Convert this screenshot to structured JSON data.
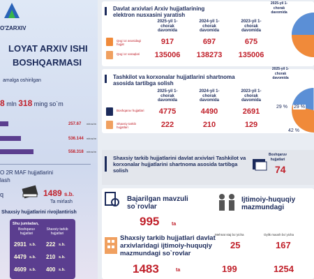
{
  "logo": {
    "name": "O'ZARXIV"
  },
  "header": {
    "title_line1": "LOYAT ARXIV ISHI",
    "title_line2": "BOSHQARMASI"
  },
  "left": {
    "revenue_caption": "amalga oshirilgan",
    "revenue": {
      "mln": "8",
      "mln_unit": "mln",
      "thousand": "318",
      "thousand_unit": "ming so`m"
    },
    "bars": [
      {
        "value": "257.67",
        "unit": "mln so'm"
      },
      {
        "value": "536.144",
        "unit": "mln so'm"
      },
      {
        "value": "558.318",
        "unit": "mln so'm"
      }
    ],
    "maf_title": "O 2R MAF hujjatlarini",
    "maf_subtitle": "lash",
    "restore": {
      "prefix": "q",
      "value": "1489",
      "unit": "s.b.",
      "label": "Ta mirlash"
    },
    "development_title": "Shaxsiy hujjatlarini rivojlantirish",
    "table": {
      "caption": "Shu jumladan,",
      "headers": [
        "Boshqaruv hujjatlari",
        "Shaxsiy tarkib hujjatlari"
      ],
      "rows": [
        [
          "2931",
          "s.b.",
          "222",
          "s.b."
        ],
        [
          "4479",
          "s.b.",
          "210",
          "s.b."
        ],
        [
          "4609",
          "s.b.",
          "400",
          "s.b."
        ]
      ]
    }
  },
  "digitization": {
    "title": "Davlat arxivlari Arxiv hujjatlarining elektron nusxasini yaratish",
    "columns": [
      "2025-yil 1-chorak davomida",
      "2024-yil 1-chorak davomida",
      "2023-yil 1-chorak davomida"
    ],
    "rows": [
      {
        "label": "Qog`oz asosidagi hujjat",
        "values": [
          "917",
          "697",
          "675"
        ]
      },
      {
        "label": "Qog`oz varaqlari",
        "values": [
          "135006",
          "138273",
          "135006"
        ]
      }
    ],
    "pie_caption": "2025-yil 1-chorak davomida"
  },
  "contracts": {
    "title": "Tashkilot va korxonalar hujjatlarini shartnoma asosida tartibga solish",
    "columns": [
      "2025-yil 1-chorak davomida",
      "2024-yil 1-chorak davomida",
      "2023-yil 1-chorak davomida"
    ],
    "rows": [
      {
        "label": "Boshqaruv hujjatlari",
        "values": [
          "4775",
          "4490",
          "2691"
        ]
      },
      {
        "label": "Shaxsiy tarkib hujjatlari",
        "values": [
          "222",
          "210",
          "129"
        ]
      }
    ],
    "pie_caption": "2025-yil 1-chorak davomida",
    "pie_labels": [
      "29 %",
      "29 %",
      "42 %"
    ]
  },
  "personnel": {
    "title": "Shaxsiy tarkib hujjatlarini davlat arxivlari Tashkilot va korxonalar hujjatlarini shartnoma asosida tartibga solish",
    "label": "Boshqaruv hujjatlari",
    "value": "74"
  },
  "requests": {
    "title": "Bajarilgan mavzuli so`rovlar",
    "value": "995",
    "unit": "ta"
  },
  "social": {
    "title": "Ijtimoiy-huquqiy mazmundagi",
    "columns": [
      "Mehnat staj bo`yicha",
      "Oylik maosh bo`yicha"
    ],
    "values": [
      "25",
      "167"
    ]
  },
  "personnel_requests": {
    "title": "Shaxsiy tarkib hujjatlari davlat arxivlaridagi ijtimoiy-huquqiy mazmundagi so`rovlar",
    "value": "1483",
    "unit": "ta",
    "values": [
      "199",
      "1254"
    ]
  }
}
